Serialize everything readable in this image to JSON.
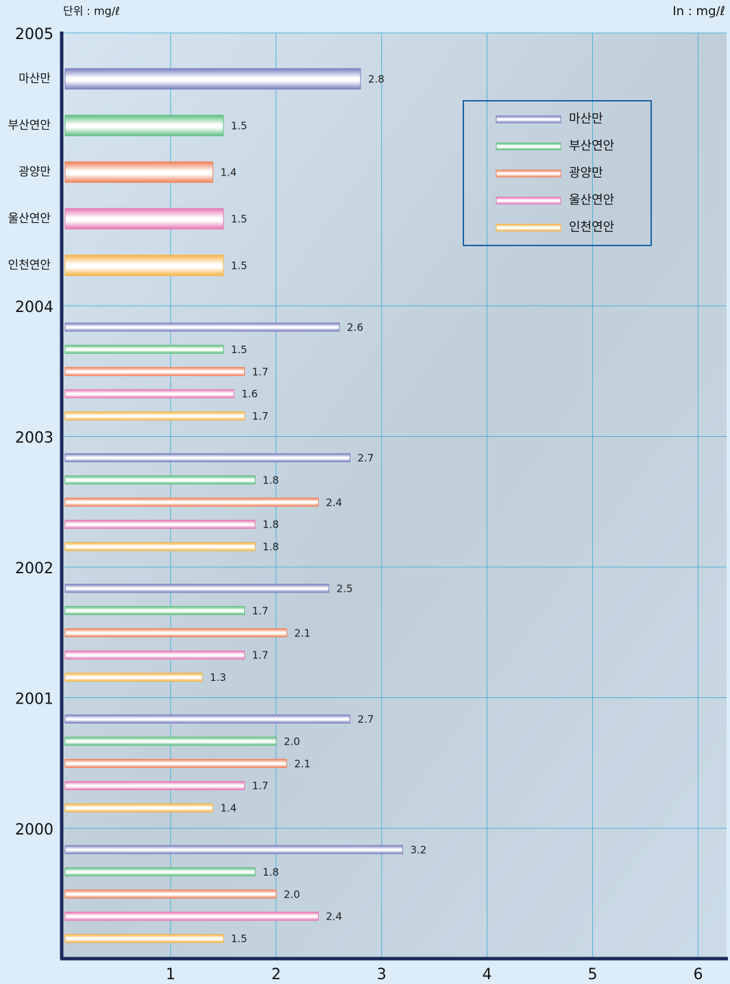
{
  "chart_data": {
    "type": "bar",
    "orientation": "horizontal",
    "unit_left": "단위 : mg/ℓ",
    "unit_right": "In : mg/ℓ",
    "categories": [
      "2005",
      "2004",
      "2003",
      "2002",
      "2001",
      "2000"
    ],
    "series": [
      {
        "name": "마산만",
        "color": "#7b7fc0",
        "values": [
          2.8,
          2.6,
          2.7,
          2.5,
          2.7,
          3.2
        ],
        "value_labels": [
          "2.8",
          "2.6",
          "2.7",
          "2.5",
          "2.7",
          "3.2"
        ]
      },
      {
        "name": "부산연안",
        "color": "#5fbf80",
        "values": [
          1.5,
          1.5,
          1.8,
          1.7,
          2.0,
          1.8
        ],
        "value_labels": [
          "1.5",
          "1.5",
          "1.8",
          "1.7",
          "2.0",
          "1.8"
        ]
      },
      {
        "name": "광양만",
        "color": "#f08158",
        "values": [
          1.4,
          1.7,
          2.4,
          2.1,
          2.1,
          2.0
        ],
        "value_labels": [
          "1.4",
          "1.7",
          "2.4",
          "2.1",
          "2.1",
          "2.0"
        ]
      },
      {
        "name": "울산연안",
        "color": "#e676b4",
        "values": [
          1.5,
          1.6,
          1.8,
          1.7,
          1.7,
          2.4
        ],
        "value_labels": [
          "1.5",
          "1.6",
          "1.8",
          "1.7",
          "1.7",
          "2.4"
        ]
      },
      {
        "name": "인천연안",
        "color": "#f5b446",
        "values": [
          1.5,
          1.7,
          1.8,
          1.3,
          1.4,
          1.5
        ],
        "value_labels": [
          "1.5",
          "1.7",
          "1.8",
          "1.3",
          "1.4",
          "1.5"
        ]
      }
    ],
    "xlim": [
      0,
      6.27
    ],
    "xticks": [
      1,
      2,
      3,
      4,
      5,
      6
    ],
    "grid": true,
    "legend": "upper right"
  }
}
